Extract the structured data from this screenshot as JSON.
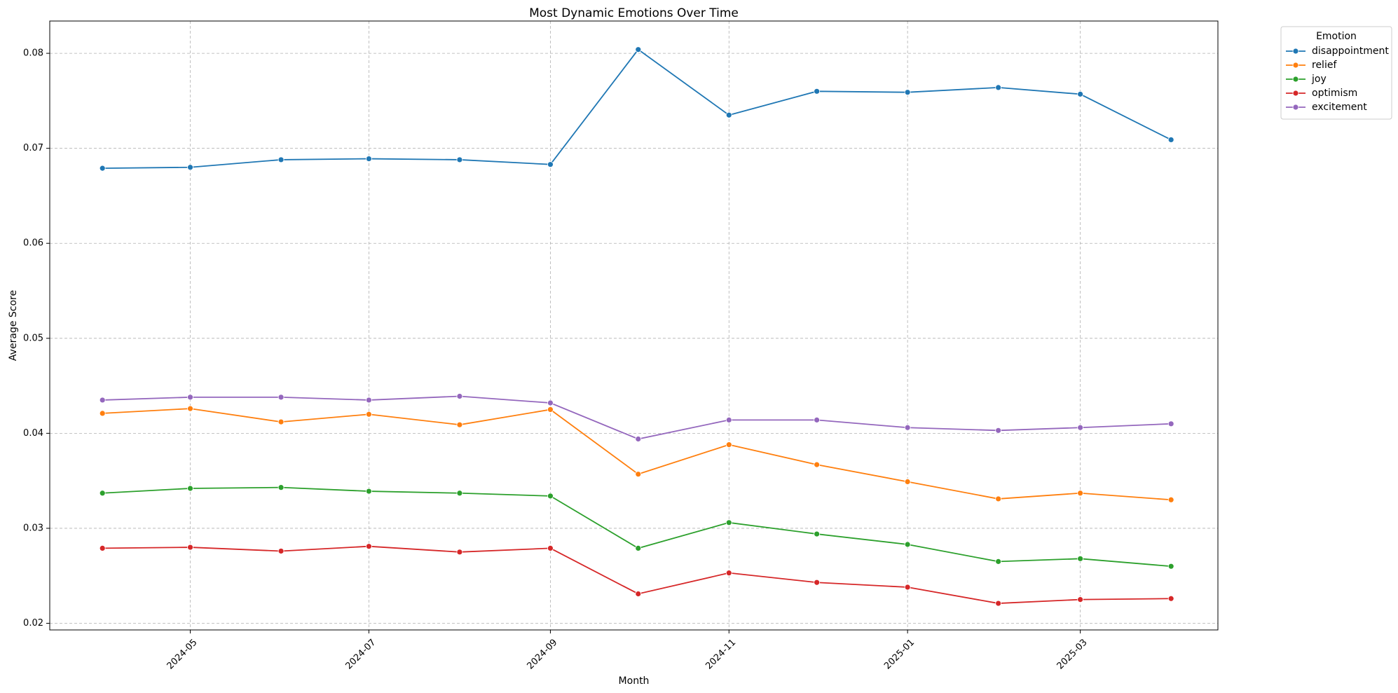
{
  "chart_data": {
    "type": "line",
    "title": "Most Dynamic Emotions Over Time",
    "xlabel": "Month",
    "ylabel": "Average Score",
    "x": [
      "2024-04-01",
      "2024-05-01",
      "2024-06-01",
      "2024-07-01",
      "2024-08-01",
      "2024-09-01",
      "2024-10-01",
      "2024-11-01",
      "2024-12-01",
      "2025-01-01",
      "2025-02-01",
      "2025-03-01",
      "2025-04-01"
    ],
    "xticks": [
      "2024-05",
      "2024-07",
      "2024-09",
      "2024-11",
      "2025-01",
      "2025-03"
    ],
    "yticks": [
      "0.02",
      "0.03",
      "0.04",
      "0.05",
      "0.06",
      "0.07",
      "0.08"
    ],
    "ylim": [
      0.0193,
      0.0834
    ],
    "xlim": [
      "2024-03-14",
      "2025-04-17"
    ],
    "grid": true,
    "legend": {
      "title": "Emotion",
      "placement": "outside-top-right"
    },
    "series": [
      {
        "name": "disappointment",
        "color": "#1f77b4",
        "values": [
          0.0679,
          0.068,
          0.0688,
          0.0689,
          0.0688,
          0.0683,
          0.0804,
          0.0735,
          0.076,
          0.0759,
          0.0764,
          0.0757,
          0.0709
        ]
      },
      {
        "name": "relief",
        "color": "#ff7f0e",
        "values": [
          0.0421,
          0.0426,
          0.0412,
          0.042,
          0.0409,
          0.0425,
          0.0357,
          0.0388,
          0.0367,
          0.0349,
          0.0331,
          0.0337,
          0.033
        ]
      },
      {
        "name": "joy",
        "color": "#2ca02c",
        "values": [
          0.0337,
          0.0342,
          0.0343,
          0.0339,
          0.0337,
          0.0334,
          0.0279,
          0.0306,
          0.0294,
          0.0283,
          0.0265,
          0.0268,
          0.026
        ]
      },
      {
        "name": "optimism",
        "color": "#d62728",
        "values": [
          0.0279,
          0.028,
          0.0276,
          0.0281,
          0.0275,
          0.0279,
          0.0231,
          0.0253,
          0.0243,
          0.0238,
          0.0221,
          0.0225,
          0.0226
        ]
      },
      {
        "name": "excitement",
        "color": "#9467bd",
        "values": [
          0.0435,
          0.0438,
          0.0438,
          0.0435,
          0.0439,
          0.0432,
          0.0394,
          0.0414,
          0.0414,
          0.0406,
          0.0403,
          0.0406,
          0.041
        ]
      }
    ]
  }
}
